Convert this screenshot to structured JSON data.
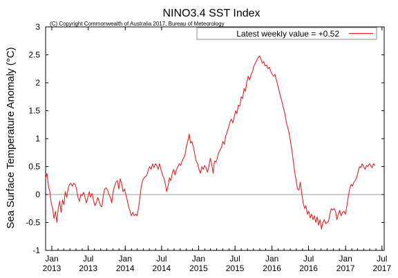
{
  "chart_data": {
    "type": "line",
    "title": "NINO3.4 SST Index",
    "subtitle": "(C) Copyright Commonwealth of Australia 2017, Bureau of Meteorology",
    "xlabel": "",
    "ylabel": "Sea Surface Temperature Anomaly (°C)",
    "ylim": [
      -1,
      3
    ],
    "yticks": [
      "-1",
      "-0.5",
      "0",
      "0.5",
      "1",
      "1.5",
      "2",
      "2.5",
      "3"
    ],
    "xlim": [
      "2012-12-01",
      "2017-07-12"
    ],
    "xticks": [
      {
        "date": "2013-01-01",
        "month": "Jan",
        "year": "2013"
      },
      {
        "date": "2013-07-01",
        "month": "Jul",
        "year": "2013"
      },
      {
        "date": "2014-01-01",
        "month": "Jan",
        "year": "2014"
      },
      {
        "date": "2014-07-01",
        "month": "Jul",
        "year": "2014"
      },
      {
        "date": "2015-01-01",
        "month": "Jan",
        "year": "2015"
      },
      {
        "date": "2015-07-01",
        "month": "Jul",
        "year": "2015"
      },
      {
        "date": "2016-01-01",
        "month": "Jan",
        "year": "2016"
      },
      {
        "date": "2016-07-01",
        "month": "Jul",
        "year": "2016"
      },
      {
        "date": "2017-01-01",
        "month": "Jan",
        "year": "2017"
      },
      {
        "date": "2017-07-01",
        "month": "Jul",
        "year": "2017"
      }
    ],
    "grid": false,
    "zero_line": true,
    "legend_position": "top-right",
    "series": [
      {
        "name": "Latest weekly value = +0.52",
        "color": "#dd2222",
        "points": [
          [
            "2012-12-01",
            0.29
          ],
          [
            "2012-12-08",
            0.38
          ],
          [
            "2012-12-15",
            0.15
          ],
          [
            "2012-12-22",
            0.05
          ],
          [
            "2012-12-29",
            -0.15
          ],
          [
            "2013-01-05",
            -0.25
          ],
          [
            "2013-01-12",
            -0.43
          ],
          [
            "2013-01-19",
            -0.3
          ],
          [
            "2013-01-26",
            -0.5
          ],
          [
            "2013-02-02",
            -0.25
          ],
          [
            "2013-02-09",
            -0.12
          ],
          [
            "2013-02-16",
            -0.32
          ],
          [
            "2013-02-23",
            -0.1
          ],
          [
            "2013-03-02",
            -0.18
          ],
          [
            "2013-03-09",
            0.05
          ],
          [
            "2013-03-16",
            -0.05
          ],
          [
            "2013-03-23",
            0.1
          ],
          [
            "2013-03-30",
            0.18
          ],
          [
            "2013-04-06",
            0.2
          ],
          [
            "2013-04-13",
            0.15
          ],
          [
            "2013-04-20",
            0.2
          ],
          [
            "2013-04-27",
            0.18
          ],
          [
            "2013-05-04",
            0.1
          ],
          [
            "2013-05-11",
            -0.05
          ],
          [
            "2013-05-18",
            -0.12
          ],
          [
            "2013-05-25",
            0.0
          ],
          [
            "2013-06-01",
            -0.02
          ],
          [
            "2013-06-08",
            0.04
          ],
          [
            "2013-06-15",
            -0.05
          ],
          [
            "2013-06-22",
            -0.15
          ],
          [
            "2013-06-29",
            -0.05
          ],
          [
            "2013-07-06",
            0.05
          ],
          [
            "2013-07-13",
            -0.05
          ],
          [
            "2013-07-20",
            0.02
          ],
          [
            "2013-07-27",
            -0.1
          ],
          [
            "2013-08-03",
            -0.2
          ],
          [
            "2013-08-10",
            -0.15
          ],
          [
            "2013-08-17",
            -0.05
          ],
          [
            "2013-08-24",
            -0.12
          ],
          [
            "2013-08-31",
            -0.2
          ],
          [
            "2013-09-07",
            -0.22
          ],
          [
            "2013-09-14",
            -0.02
          ],
          [
            "2013-09-21",
            0.1
          ],
          [
            "2013-09-28",
            0.12
          ],
          [
            "2013-10-05",
            0.08
          ],
          [
            "2013-10-12",
            0.0
          ],
          [
            "2013-10-19",
            -0.05
          ],
          [
            "2013-10-26",
            -0.15
          ],
          [
            "2013-11-02",
            0.05
          ],
          [
            "2013-11-09",
            0.15
          ],
          [
            "2013-11-16",
            0.22
          ],
          [
            "2013-11-23",
            0.25
          ],
          [
            "2013-11-30",
            0.1
          ],
          [
            "2013-12-07",
            0.28
          ],
          [
            "2013-12-14",
            0.2
          ],
          [
            "2013-12-21",
            0.05
          ],
          [
            "2013-12-28",
            0.1
          ],
          [
            "2014-01-04",
            0.0
          ],
          [
            "2014-01-11",
            -0.1
          ],
          [
            "2014-01-18",
            -0.22
          ],
          [
            "2014-01-25",
            -0.3
          ],
          [
            "2014-02-01",
            -0.38
          ],
          [
            "2014-02-08",
            -0.32
          ],
          [
            "2014-02-15",
            -0.38
          ],
          [
            "2014-02-22",
            -0.35
          ],
          [
            "2014-03-01",
            -0.38
          ],
          [
            "2014-03-08",
            -0.25
          ],
          [
            "2014-03-15",
            -0.05
          ],
          [
            "2014-03-22",
            0.15
          ],
          [
            "2014-03-29",
            0.25
          ],
          [
            "2014-04-05",
            0.3
          ],
          [
            "2014-04-12",
            0.32
          ],
          [
            "2014-04-19",
            0.35
          ],
          [
            "2014-04-26",
            0.45
          ],
          [
            "2014-05-03",
            0.5
          ],
          [
            "2014-05-10",
            0.45
          ],
          [
            "2014-05-17",
            0.55
          ],
          [
            "2014-05-24",
            0.48
          ],
          [
            "2014-05-31",
            0.55
          ],
          [
            "2014-06-07",
            0.52
          ],
          [
            "2014-06-14",
            0.45
          ],
          [
            "2014-06-21",
            0.55
          ],
          [
            "2014-06-28",
            0.45
          ],
          [
            "2014-07-05",
            0.35
          ],
          [
            "2014-07-12",
            0.3
          ],
          [
            "2014-07-19",
            0.2
          ],
          [
            "2014-07-26",
            0.05
          ],
          [
            "2014-08-02",
            0.15
          ],
          [
            "2014-08-09",
            0.3
          ],
          [
            "2014-08-16",
            0.25
          ],
          [
            "2014-08-23",
            0.38
          ],
          [
            "2014-08-30",
            0.45
          ],
          [
            "2014-09-06",
            0.35
          ],
          [
            "2014-09-13",
            0.45
          ],
          [
            "2014-09-20",
            0.5
          ],
          [
            "2014-09-27",
            0.55
          ],
          [
            "2014-10-04",
            0.52
          ],
          [
            "2014-10-11",
            0.6
          ],
          [
            "2014-10-18",
            0.65
          ],
          [
            "2014-10-25",
            0.7
          ],
          [
            "2014-11-01",
            0.85
          ],
          [
            "2014-11-08",
            0.95
          ],
          [
            "2014-11-15",
            1.08
          ],
          [
            "2014-11-22",
            0.92
          ],
          [
            "2014-11-29",
            0.95
          ],
          [
            "2014-12-06",
            0.85
          ],
          [
            "2014-12-13",
            0.72
          ],
          [
            "2014-12-20",
            0.6
          ],
          [
            "2014-12-27",
            0.55
          ],
          [
            "2015-01-03",
            0.45
          ],
          [
            "2015-01-10",
            0.38
          ],
          [
            "2015-01-17",
            0.5
          ],
          [
            "2015-01-24",
            0.45
          ],
          [
            "2015-01-31",
            0.52
          ],
          [
            "2015-02-07",
            0.48
          ],
          [
            "2015-02-14",
            0.4
          ],
          [
            "2015-02-21",
            0.5
          ],
          [
            "2015-02-28",
            0.65
          ],
          [
            "2015-03-07",
            0.55
          ],
          [
            "2015-03-14",
            0.38
          ],
          [
            "2015-03-21",
            0.6
          ],
          [
            "2015-03-28",
            0.58
          ],
          [
            "2015-04-04",
            0.65
          ],
          [
            "2015-04-11",
            0.75
          ],
          [
            "2015-04-18",
            0.8
          ],
          [
            "2015-04-25",
            0.85
          ],
          [
            "2015-05-02",
            0.95
          ],
          [
            "2015-05-09",
            0.9
          ],
          [
            "2015-05-16",
            1.05
          ],
          [
            "2015-05-23",
            1.12
          ],
          [
            "2015-05-30",
            1.2
          ],
          [
            "2015-06-06",
            1.3
          ],
          [
            "2015-06-13",
            1.35
          ],
          [
            "2015-06-20",
            1.28
          ],
          [
            "2015-06-27",
            1.38
          ],
          [
            "2015-07-04",
            1.5
          ],
          [
            "2015-07-11",
            1.45
          ],
          [
            "2015-07-18",
            1.6
          ],
          [
            "2015-07-25",
            1.58
          ],
          [
            "2015-08-01",
            1.75
          ],
          [
            "2015-08-08",
            1.72
          ],
          [
            "2015-08-15",
            1.9
          ],
          [
            "2015-08-22",
            1.85
          ],
          [
            "2015-08-29",
            2.02
          ],
          [
            "2015-09-05",
            2.12
          ],
          [
            "2015-09-12",
            2.05
          ],
          [
            "2015-09-19",
            2.15
          ],
          [
            "2015-09-26",
            2.2
          ],
          [
            "2015-10-03",
            2.3
          ],
          [
            "2015-10-10",
            2.35
          ],
          [
            "2015-10-17",
            2.4
          ],
          [
            "2015-10-24",
            2.45
          ],
          [
            "2015-10-31",
            2.48
          ],
          [
            "2015-11-07",
            2.42
          ],
          [
            "2015-11-14",
            2.35
          ],
          [
            "2015-11-21",
            2.38
          ],
          [
            "2015-11-28",
            2.3
          ],
          [
            "2015-12-05",
            2.32
          ],
          [
            "2015-12-12",
            2.25
          ],
          [
            "2015-12-19",
            2.28
          ],
          [
            "2015-12-26",
            2.2
          ],
          [
            "2016-01-02",
            2.15
          ],
          [
            "2016-01-09",
            2.12
          ],
          [
            "2016-01-16",
            2.15
          ],
          [
            "2016-01-23",
            2.05
          ],
          [
            "2016-01-30",
            1.95
          ],
          [
            "2016-02-06",
            1.85
          ],
          [
            "2016-02-13",
            1.75
          ],
          [
            "2016-02-20",
            1.65
          ],
          [
            "2016-02-27",
            1.55
          ],
          [
            "2016-03-05",
            1.45
          ],
          [
            "2016-03-12",
            1.3
          ],
          [
            "2016-03-19",
            1.2
          ],
          [
            "2016-03-26",
            1.1
          ],
          [
            "2016-04-02",
            0.95
          ],
          [
            "2016-04-09",
            0.8
          ],
          [
            "2016-04-16",
            0.6
          ],
          [
            "2016-04-23",
            0.4
          ],
          [
            "2016-04-30",
            0.25
          ],
          [
            "2016-05-07",
            0.1
          ],
          [
            "2016-05-14",
            0.08
          ],
          [
            "2016-05-21",
            0.22
          ],
          [
            "2016-05-28",
            0.02
          ],
          [
            "2016-06-04",
            -0.15
          ],
          [
            "2016-06-11",
            -0.25
          ],
          [
            "2016-06-18",
            -0.2
          ],
          [
            "2016-06-25",
            -0.35
          ],
          [
            "2016-07-02",
            -0.3
          ],
          [
            "2016-07-09",
            -0.42
          ],
          [
            "2016-07-16",
            -0.35
          ],
          [
            "2016-07-23",
            -0.45
          ],
          [
            "2016-07-30",
            -0.38
          ],
          [
            "2016-08-06",
            -0.5
          ],
          [
            "2016-08-13",
            -0.4
          ],
          [
            "2016-08-20",
            -0.55
          ],
          [
            "2016-08-27",
            -0.45
          ],
          [
            "2016-09-03",
            -0.62
          ],
          [
            "2016-09-10",
            -0.5
          ],
          [
            "2016-09-17",
            -0.45
          ],
          [
            "2016-09-24",
            -0.52
          ],
          [
            "2016-10-01",
            -0.5
          ],
          [
            "2016-10-08",
            -0.48
          ],
          [
            "2016-10-15",
            -0.35
          ],
          [
            "2016-10-22",
            -0.25
          ],
          [
            "2016-10-29",
            -0.28
          ],
          [
            "2016-11-05",
            -0.25
          ],
          [
            "2016-11-12",
            -0.3
          ],
          [
            "2016-11-19",
            -0.45
          ],
          [
            "2016-11-26",
            -0.35
          ],
          [
            "2016-12-03",
            -0.28
          ],
          [
            "2016-12-10",
            -0.38
          ],
          [
            "2016-12-17",
            -0.32
          ],
          [
            "2016-12-24",
            -0.3
          ],
          [
            "2016-12-31",
            -0.35
          ],
          [
            "2017-01-07",
            -0.22
          ],
          [
            "2017-01-14",
            -0.05
          ],
          [
            "2017-01-21",
            0.1
          ],
          [
            "2017-01-28",
            0.18
          ],
          [
            "2017-02-04",
            0.15
          ],
          [
            "2017-02-11",
            0.22
          ],
          [
            "2017-02-18",
            0.25
          ],
          [
            "2017-02-25",
            0.3
          ],
          [
            "2017-03-04",
            0.4
          ],
          [
            "2017-03-11",
            0.5
          ],
          [
            "2017-03-18",
            0.48
          ],
          [
            "2017-03-25",
            0.55
          ],
          [
            "2017-04-01",
            0.5
          ],
          [
            "2017-04-08",
            0.45
          ],
          [
            "2017-04-15",
            0.52
          ],
          [
            "2017-04-22",
            0.5
          ],
          [
            "2017-04-29",
            0.55
          ],
          [
            "2017-05-06",
            0.52
          ],
          [
            "2017-05-13",
            0.48
          ],
          [
            "2017-05-20",
            0.55
          ],
          [
            "2017-05-27",
            0.52
          ]
        ]
      }
    ]
  }
}
